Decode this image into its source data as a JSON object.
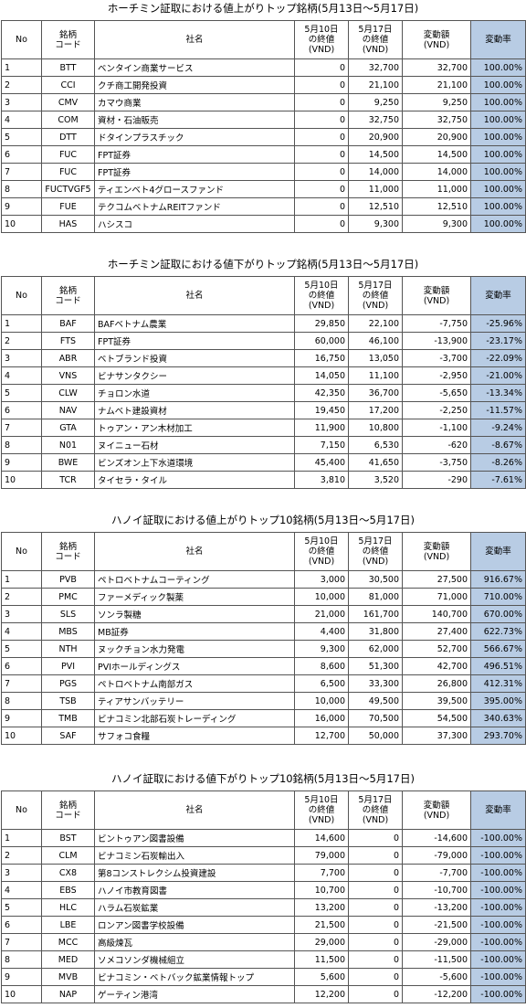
{
  "tables": [
    {
      "title": "ホーチミン証取における値上がりトップ銘柄(5月13日〜5月17日)",
      "header": [
        [
          "No"
        ],
        [
          "銘柄",
          "コード"
        ],
        [
          "社名"
        ],
        [
          "5月10日",
          "の終値",
          "(VND)"
        ],
        [
          "5月17日",
          "の終値",
          "(VND)"
        ],
        [
          "変動額",
          "(VND)"
        ],
        [
          "変動率"
        ]
      ],
      "rows": [
        [
          "1",
          "BTT",
          "ベンタイン商業サービス",
          "0",
          "32,700",
          "32,700",
          "100.00%"
        ],
        [
          "2",
          "CCI",
          "クチ商工開発投資",
          "0",
          "21,100",
          "21,100",
          "100.00%"
        ],
        [
          "3",
          "CMV",
          "カマウ商業",
          "0",
          "9,250",
          "9,250",
          "100.00%"
        ],
        [
          "4",
          "COM",
          "資材・石油販売",
          "0",
          "32,750",
          "32,750",
          "100.00%"
        ],
        [
          "5",
          "DTT",
          "ドタインプラスチック",
          "0",
          "20,900",
          "20,900",
          "100.00%"
        ],
        [
          "6",
          "FUC",
          "FPT証券",
          "0",
          "14,500",
          "14,500",
          "100.00%"
        ],
        [
          "7",
          "FUC",
          "FPT証券",
          "0",
          "14,000",
          "14,000",
          "100.00%"
        ],
        [
          "8",
          "FUCTVGF5",
          "ティエンベト4グロースファンド",
          "0",
          "11,000",
          "11,000",
          "100.00%"
        ],
        [
          "9",
          "FUE",
          "テクコムベトナムREITファンド",
          "0",
          "12,510",
          "12,510",
          "100.00%"
        ],
        [
          "10",
          "HAS",
          "ハシスコ",
          "0",
          "9,300",
          "9,300",
          "100.00%"
        ]
      ]
    },
    {
      "title": "ホーチミン証取における値下がりトップ銘柄(5月13日〜5月17日)",
      "header": [
        [
          "No"
        ],
        [
          "銘柄",
          "コード"
        ],
        [
          "社名"
        ],
        [
          "5月10日",
          "の終値",
          "(VND)"
        ],
        [
          "5月17日",
          "の終値",
          "(VND)"
        ],
        [
          "変動額",
          "(VND)"
        ],
        [
          "変動率"
        ]
      ],
      "rows": [
        [
          "1",
          "BAF",
          "BAFベトナム農業",
          "29,850",
          "22,100",
          "-7,750",
          "-25.96%"
        ],
        [
          "2",
          "FTS",
          "FPT証券",
          "60,000",
          "46,100",
          "-13,900",
          "-23.17%"
        ],
        [
          "3",
          "ABR",
          "ベトブランド投資",
          "16,750",
          "13,050",
          "-3,700",
          "-22.09%"
        ],
        [
          "4",
          "VNS",
          "ビナサンタクシー",
          "14,050",
          "11,100",
          "-2,950",
          "-21.00%"
        ],
        [
          "5",
          "CLW",
          "チョロン水道",
          "42,350",
          "36,700",
          "-5,650",
          "-13.34%"
        ],
        [
          "6",
          "NAV",
          "ナムベト建設資材",
          "19,450",
          "17,200",
          "-2,250",
          "-11.57%"
        ],
        [
          "7",
          "GTA",
          "トゥアン・アン木材加工",
          "11,900",
          "10,800",
          "-1,100",
          "-9.24%"
        ],
        [
          "8",
          "N01",
          "ヌイニュー石材",
          "7,150",
          "6,530",
          "-620",
          "-8.67%"
        ],
        [
          "9",
          "BWE",
          "ビンズオン上下水道環境",
          "45,400",
          "41,650",
          "-3,750",
          "-8.26%"
        ],
        [
          "10",
          "TCR",
          "タイセラ・タイル",
          "3,810",
          "3,520",
          "-290",
          "-7.61%"
        ]
      ]
    },
    {
      "title": "ハノイ証取における値上がりトップ10銘柄(5月13日〜5月17日)",
      "header": [
        [
          "No"
        ],
        [
          "銘柄",
          "コード"
        ],
        [
          "社名"
        ],
        [
          "5月10日",
          "の終値",
          "(VND)"
        ],
        [
          "5月17日",
          "の終値",
          "(VND)"
        ],
        [
          "変動額",
          "(VND)"
        ],
        [
          "変動率"
        ]
      ],
      "rows": [
        [
          "1",
          "PVB",
          "ペトロベトナムコーティング",
          "3,000",
          "30,500",
          "27,500",
          "916.67%"
        ],
        [
          "2",
          "PMC",
          "ファーメディック製薬",
          "10,000",
          "81,000",
          "71,000",
          "710.00%"
        ],
        [
          "3",
          "SLS",
          "ソンラ製糖",
          "21,000",
          "161,700",
          "140,700",
          "670.00%"
        ],
        [
          "4",
          "MBS",
          "MB証券",
          "4,400",
          "31,800",
          "27,400",
          "622.73%"
        ],
        [
          "5",
          "NTH",
          "ヌックチョン水力発電",
          "9,300",
          "62,000",
          "52,700",
          "566.67%"
        ],
        [
          "6",
          "PVI",
          "PVIホールディングス",
          "8,600",
          "51,300",
          "42,700",
          "496.51%"
        ],
        [
          "7",
          "PGS",
          "ペトロベトナム南部ガス",
          "6,500",
          "33,300",
          "26,800",
          "412.31%"
        ],
        [
          "8",
          "TSB",
          "ティアサンバッテリー",
          "10,000",
          "49,500",
          "39,500",
          "395.00%"
        ],
        [
          "9",
          "TMB",
          "ビナコミン北部石炭トレーディング",
          "16,000",
          "70,500",
          "54,500",
          "340.63%"
        ],
        [
          "10",
          "SAF",
          "サフォコ食糧",
          "12,700",
          "50,000",
          "37,300",
          "293.70%"
        ]
      ]
    },
    {
      "title": "ハノイ証取における値下がりトップ10銘柄(5月13日〜5月17日)",
      "header": [
        [
          "No"
        ],
        [
          "銘柄",
          "コード"
        ],
        [
          "社名"
        ],
        [
          "5月10日",
          "の終値",
          "(VND)"
        ],
        [
          "5月17日",
          "の終値",
          "(VND)"
        ],
        [
          "変動額",
          "(VND)"
        ],
        [
          "変動率"
        ]
      ],
      "rows": [
        [
          "1",
          "BST",
          "ビントゥアン図書設備",
          "14,600",
          "0",
          "-14,600",
          "-100.00%"
        ],
        [
          "2",
          "CLM",
          "ビナコミン石炭輸出入",
          "79,000",
          "0",
          "-79,000",
          "-100.00%"
        ],
        [
          "3",
          "CX8",
          "第8コンストレクシム投資建設",
          "7,700",
          "0",
          "-7,700",
          "-100.00%"
        ],
        [
          "4",
          "EBS",
          "ハノイ市教育図書",
          "10,700",
          "0",
          "-10,700",
          "-100.00%"
        ],
        [
          "5",
          "HLC",
          "ハラム石炭鉱業",
          "13,200",
          "0",
          "-13,200",
          "-100.00%"
        ],
        [
          "6",
          "LBE",
          "ロンアン図書学校設備",
          "21,500",
          "0",
          "-21,500",
          "-100.00%"
        ],
        [
          "7",
          "MCC",
          "高級煉瓦",
          "29,000",
          "0",
          "-29,000",
          "-100.00%"
        ],
        [
          "8",
          "MED",
          "ソメコソンダ機械組立",
          "11,500",
          "0",
          "-11,500",
          "-100.00%"
        ],
        [
          "9",
          "MVB",
          "ビナコミン・ベトバック鉱業情報トップ",
          "5,600",
          "0",
          "-5,600",
          "-100.00%"
        ],
        [
          "10",
          "NAP",
          "ゲーティン港湾",
          "12,200",
          "0",
          "-12,200",
          "-100.00%"
        ]
      ]
    }
  ]
}
